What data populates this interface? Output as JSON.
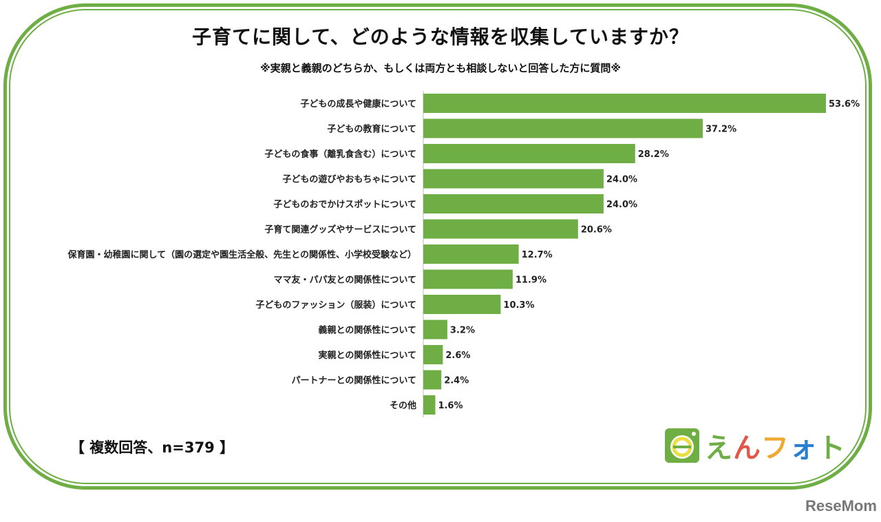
{
  "chart_data": {
    "type": "bar",
    "orientation": "horizontal",
    "title": "子育てに関して、どのような情報を収集していますか？",
    "subtitle": "※実親と義親のどちらか、もしくは両方とも相談しないと回答した方に質問※",
    "categories": [
      "子どもの成長や健康について",
      "子どもの教育について",
      "子どもの食事（離乳食含む）について",
      "子どもの遊びやおもちゃについて",
      "子どものおでかけスポットについて",
      "子育て関連グッズやサービスについて",
      "保育園・幼稚園に関して（園の選定や園生活全般、先生との関係性、小学校受験など）",
      "ママ友・パパ友との関係性について",
      "子どものファッション（服装）について",
      "義親との関係性について",
      "実親との関係性について",
      "パートナーとの関係性について",
      "その他"
    ],
    "values": [
      53.6,
      37.2,
      28.2,
      24.0,
      24.0,
      20.6,
      12.7,
      11.9,
      10.3,
      3.2,
      2.6,
      2.4,
      1.6
    ],
    "data_labels": [
      "53.6%",
      "37.2%",
      "28.2%",
      "24.0%",
      "24.0%",
      "20.6%",
      "12.7%",
      "11.9%",
      "10.3%",
      "3.2%",
      "2.6%",
      "2.4%",
      "1.6%"
    ],
    "unit": "%",
    "xlim": [
      0,
      53.6
    ],
    "grid": false,
    "bar_color": "#6fae45",
    "note": "【 複数回答、n=379 】"
  },
  "logo": {
    "text": "えんフォト",
    "colors": [
      "#6fae45",
      "#6fae45",
      "#e0584a",
      "#f0a830",
      "#2a7fd0"
    ]
  },
  "watermark": "ReseMom"
}
